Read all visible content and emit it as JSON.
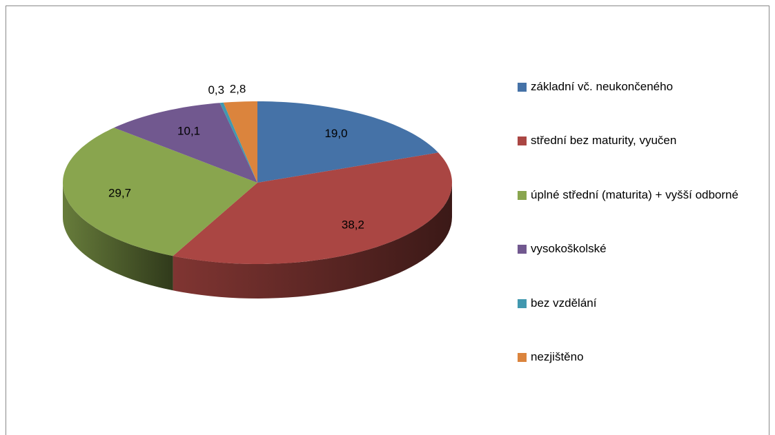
{
  "chart_data": {
    "type": "pie3d",
    "categories": [
      "základní vč. neukončeného",
      "střední bez maturity, vyučen",
      "úplné střední (maturita) + vyšší odborné",
      "vysokoškolské",
      "bez vzdělání",
      "nezjištěno"
    ],
    "values": [
      19.0,
      38.2,
      29.7,
      10.1,
      0.3,
      2.8
    ],
    "value_labels": [
      "19,0",
      "38,2",
      "29,7",
      "10,1",
      "0,3",
      "2,8"
    ],
    "colors": [
      "#4572a7",
      "#aa4643",
      "#89a54e",
      "#71588f",
      "#4198af",
      "#db843d"
    ],
    "legend": "right"
  }
}
